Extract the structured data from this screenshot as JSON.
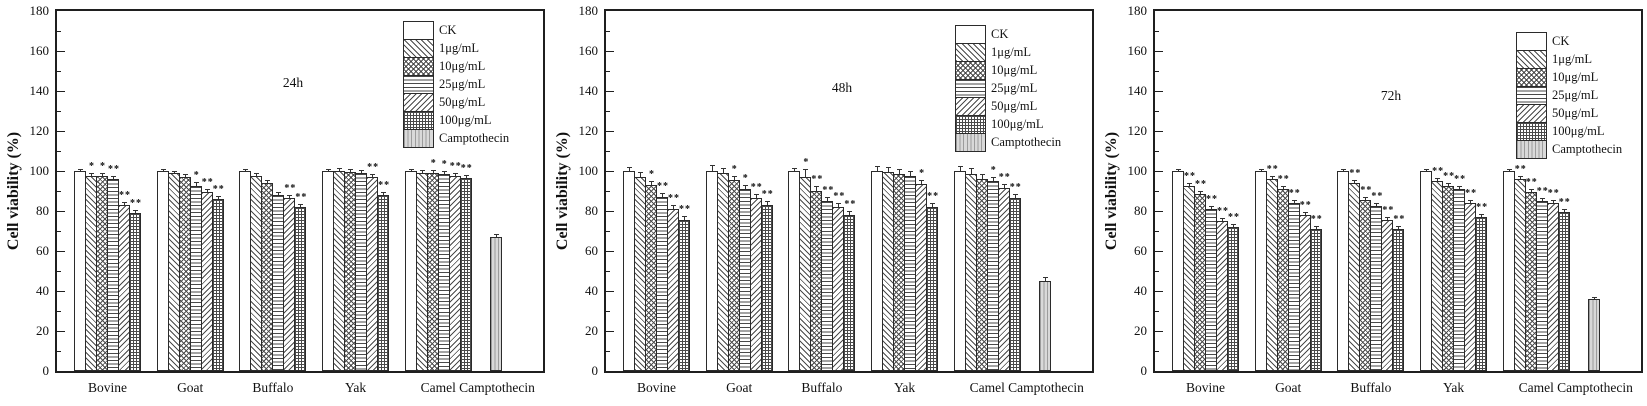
{
  "figure": {
    "ylabel": "Cell viability (%)",
    "panel_titles": [
      "24h",
      "48h",
      "72h"
    ],
    "colors": {
      "line": "#1f1f1f",
      "camptothecin_fill": "#d9d9d9",
      "background": "#ffffff"
    },
    "legend": [
      {
        "label": "CK",
        "pattern": "empty"
      },
      {
        "label": "1μg/mL",
        "pattern": "diag-back"
      },
      {
        "label": "10μg/mL",
        "pattern": "diamond"
      },
      {
        "label": "25μg/mL",
        "pattern": "h-lines"
      },
      {
        "label": "50μg/mL",
        "pattern": "diag-fwd"
      },
      {
        "label": "100μg/mL",
        "pattern": "grid"
      },
      {
        "label": "Camptothecin",
        "pattern": "v-lines-gray"
      }
    ]
  },
  "chart_data": [
    {
      "type": "bar",
      "title": "24h",
      "ylabel": "Cell viability (%)",
      "ylim": [
        0,
        180
      ],
      "ytick_step": 20,
      "grid": false,
      "legend_position": "top-right",
      "series_labels": [
        "CK",
        "1μg/mL",
        "10μg/mL",
        "25μg/mL",
        "50μg/mL",
        "100μg/mL"
      ],
      "groups": [
        {
          "category": "Bovine",
          "values": [
            100,
            97.5,
            97.5,
            96,
            83,
            79
          ],
          "errors": [
            0.5,
            0.8,
            0.8,
            0.8,
            1,
            1
          ],
          "sig": [
            "",
            "*",
            "*",
            "**",
            "**",
            "**"
          ]
        },
        {
          "category": "Goat",
          "values": [
            100,
            99,
            97,
            92.5,
            89.5,
            86
          ],
          "errors": [
            0.5,
            0.5,
            0.8,
            1.5,
            1,
            0.8
          ],
          "sig": [
            "",
            "",
            "",
            "*",
            "**",
            "**"
          ]
        },
        {
          "category": "Buffalo",
          "values": [
            100,
            97.5,
            94,
            88,
            86.5,
            82
          ],
          "errors": [
            0.5,
            0.8,
            0.8,
            0.8,
            0.8,
            0.8
          ],
          "sig": [
            "",
            "",
            "",
            "",
            "**",
            "**"
          ]
        },
        {
          "category": "Yak",
          "values": [
            100,
            100,
            99.5,
            99,
            97,
            88
          ],
          "errors": [
            0.5,
            0.8,
            0.8,
            0.8,
            0.8,
            1
          ],
          "sig": [
            "",
            "",
            "",
            "",
            "**",
            "**"
          ]
        },
        {
          "category": "Camel",
          "values": [
            100,
            99,
            99,
            98.5,
            97.5,
            96.5
          ],
          "errors": [
            0.5,
            1,
            0.8,
            0.8,
            0.8,
            0.8
          ],
          "sig": [
            "",
            "",
            "*",
            "*",
            "**",
            "**"
          ]
        },
        {
          "category": "Camptothecin",
          "values": [
            67
          ],
          "errors": [
            0.8
          ],
          "sig": [
            ""
          ]
        }
      ]
    },
    {
      "type": "bar",
      "title": "48h",
      "ylabel": "Cell viability (%)",
      "ylim": [
        0,
        180
      ],
      "ytick_step": 20,
      "grid": false,
      "legend_position": "top-right",
      "series_labels": [
        "CK",
        "1μg/mL",
        "10μg/mL",
        "25μg/mL",
        "50μg/mL",
        "100μg/mL"
      ],
      "groups": [
        {
          "category": "Bovine",
          "values": [
            100,
            97,
            93,
            87,
            81,
            75.5
          ],
          "errors": [
            1.5,
            2,
            1.5,
            1.5,
            1.5,
            1.5
          ],
          "sig": [
            "",
            "",
            "*",
            "**",
            "**",
            "**"
          ]
        },
        {
          "category": "Goat",
          "values": [
            100,
            99,
            95.5,
            91,
            86.5,
            83
          ],
          "errors": [
            2.5,
            2,
            1.5,
            1.5,
            1.5,
            1.5
          ],
          "sig": [
            "",
            "",
            "*",
            "*",
            "**",
            "**"
          ]
        },
        {
          "category": "Buffalo",
          "values": [
            100,
            97,
            90,
            85,
            82,
            78
          ],
          "errors": [
            1,
            3.5,
            2,
            1.5,
            1.5,
            1.5
          ],
          "sig": [
            "",
            "*",
            "**",
            "**",
            "**",
            "**"
          ]
        },
        {
          "category": "Yak",
          "values": [
            100,
            99.5,
            98.5,
            97.5,
            93.5,
            82
          ],
          "errors": [
            2,
            2,
            2,
            2,
            1.5,
            1.5
          ],
          "sig": [
            "",
            "",
            "",
            "",
            "*",
            "**"
          ]
        },
        {
          "category": "Camel",
          "values": [
            100,
            98.5,
            96,
            95,
            91.5,
            86.5
          ],
          "errors": [
            2,
            2.5,
            2,
            1.5,
            1.5,
            1.5
          ],
          "sig": [
            "",
            "",
            "",
            "*",
            "**",
            "**"
          ]
        },
        {
          "category": "Camptothecin",
          "values": [
            45
          ],
          "errors": [
            1.5
          ],
          "sig": [
            ""
          ]
        }
      ]
    },
    {
      "type": "bar",
      "title": "72h",
      "ylabel": "Cell viability (%)",
      "ylim": [
        0,
        180
      ],
      "ytick_step": 20,
      "grid": false,
      "legend_position": "top-right",
      "series_labels": [
        "CK",
        "1μg/mL",
        "10μg/mL",
        "25μg/mL",
        "50μg/mL",
        "100μg/mL"
      ],
      "groups": [
        {
          "category": "Bovine",
          "values": [
            100,
            92.5,
            88.5,
            81,
            75,
            72
          ],
          "errors": [
            0.5,
            0.8,
            0.8,
            0.8,
            0.8,
            0.8
          ],
          "sig": [
            "",
            "**",
            "**",
            "**",
            "**",
            "**"
          ]
        },
        {
          "category": "Goat",
          "values": [
            100,
            96,
            91,
            84,
            78,
            71
          ],
          "errors": [
            0.5,
            0.8,
            0.8,
            0.8,
            0.8,
            0.8
          ],
          "sig": [
            "",
            "**",
            "**",
            "**",
            "**",
            "**"
          ]
        },
        {
          "category": "Buffalo",
          "values": [
            100,
            94,
            85.5,
            82.5,
            75.5,
            71
          ],
          "errors": [
            0.5,
            0.8,
            0.8,
            0.8,
            0.8,
            0.8
          ],
          "sig": [
            "",
            "**",
            "**",
            "**",
            "**",
            "**"
          ]
        },
        {
          "category": "Yak",
          "values": [
            100,
            95,
            92.5,
            91,
            84,
            77
          ],
          "errors": [
            0.5,
            0.8,
            0.8,
            0.8,
            0.8,
            0.8
          ],
          "sig": [
            "",
            "**",
            "**",
            "**",
            "**",
            "**"
          ]
        },
        {
          "category": "Camel",
          "values": [
            100,
            96,
            89.5,
            85,
            84,
            79.5
          ],
          "errors": [
            0.5,
            0.8,
            0.8,
            0.8,
            0.8,
            0.8
          ],
          "sig": [
            "",
            "**",
            "**",
            "**",
            "**",
            "**"
          ]
        },
        {
          "category": "Camptothecin",
          "values": [
            36
          ],
          "errors": [
            0.5
          ],
          "sig": [
            ""
          ]
        }
      ]
    }
  ]
}
